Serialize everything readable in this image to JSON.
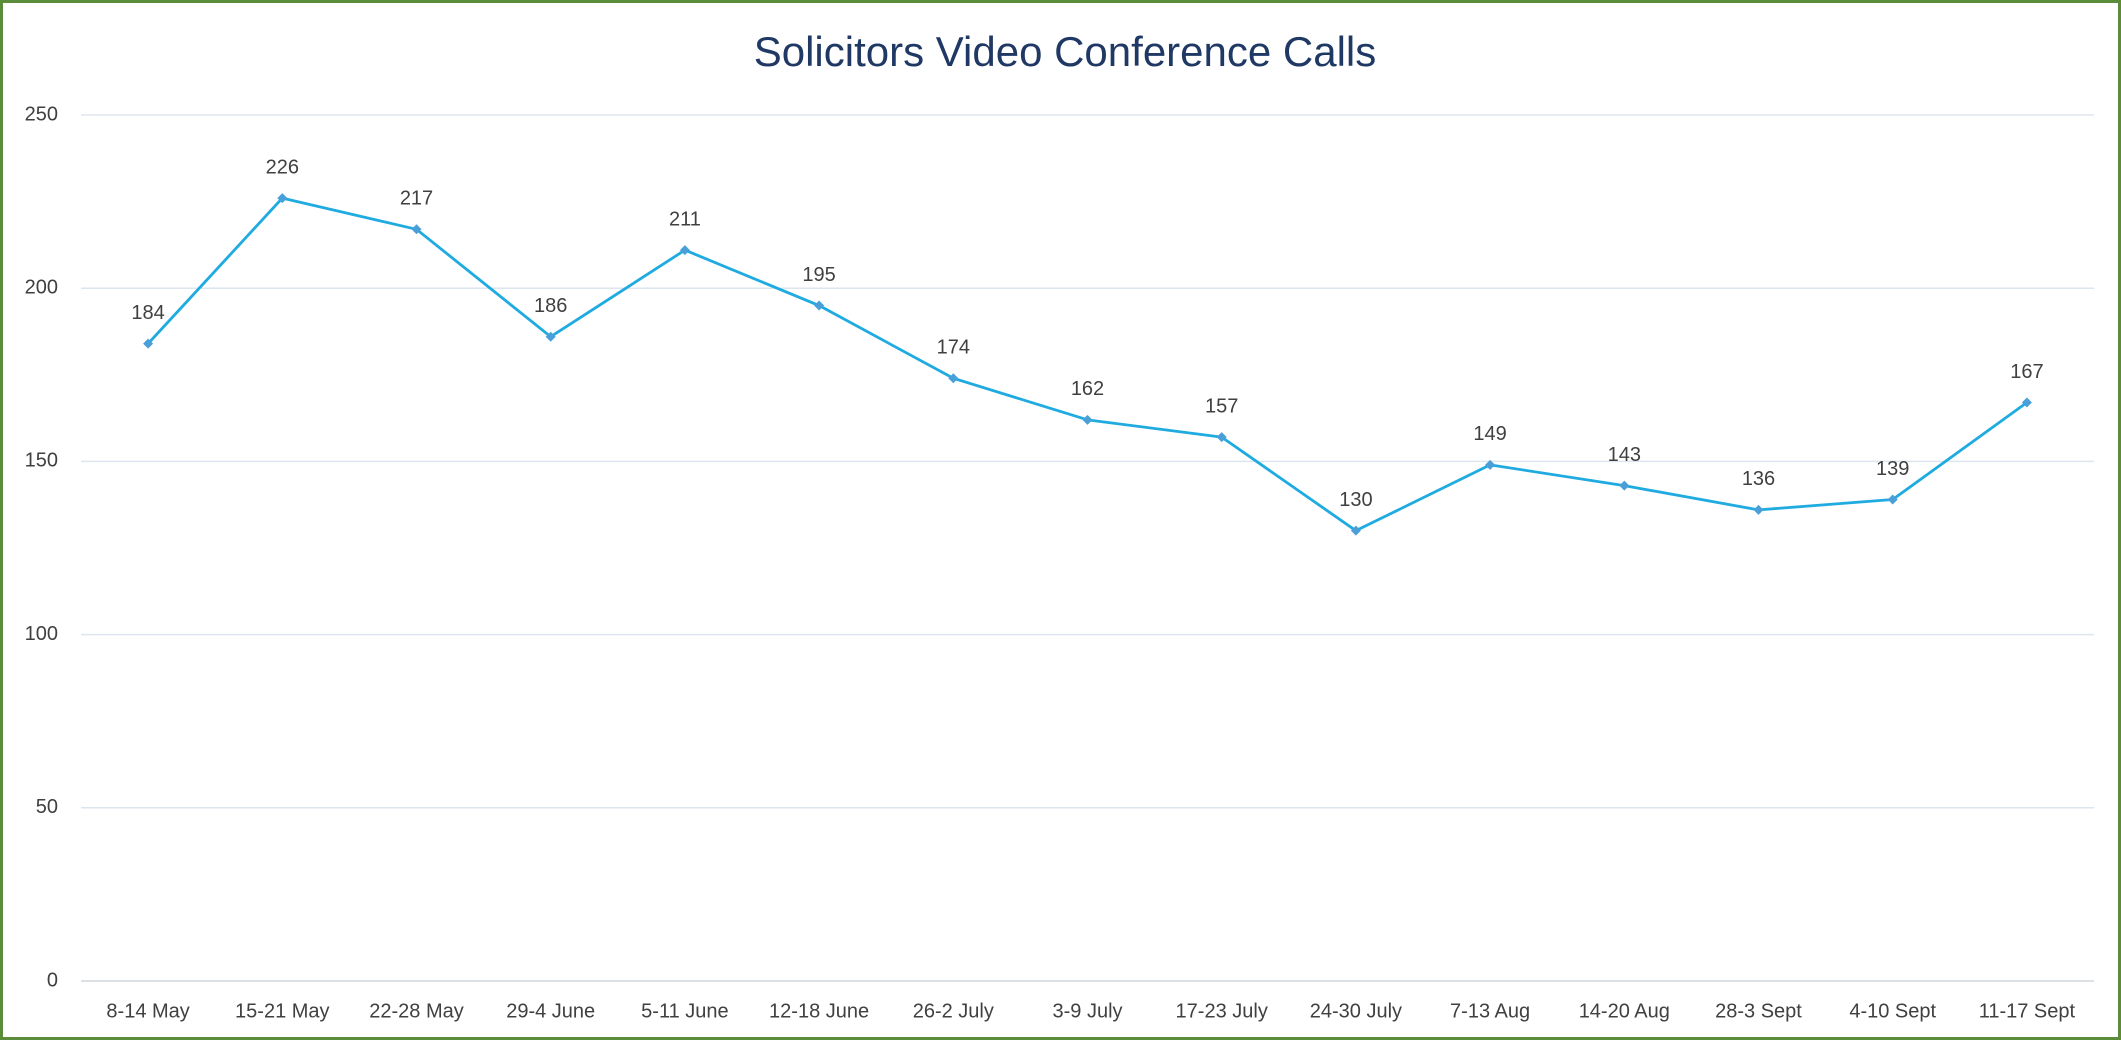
{
  "chart_data": {
    "type": "line",
    "title": "Solicitors Video Conference Calls",
    "categories": [
      "8-14 May",
      "15-21 May",
      "22-28 May",
      "29-4 June",
      "5-11 June",
      "12-18 June",
      "26-2 July",
      "3-9 July",
      "17-23 July",
      "24-30 July",
      "7-13 Aug",
      "14-20 Aug",
      "28-3 Sept",
      "4-10 Sept",
      "11-17 Sept"
    ],
    "values": [
      184,
      226,
      217,
      186,
      211,
      195,
      174,
      162,
      157,
      130,
      149,
      143,
      136,
      139,
      167
    ],
    "color": "#1fabe0",
    "marker_color": "#4a9fd8",
    "ylim": [
      0,
      250
    ],
    "yticks": [
      0,
      50,
      100,
      150,
      200,
      250
    ],
    "grid": true
  }
}
